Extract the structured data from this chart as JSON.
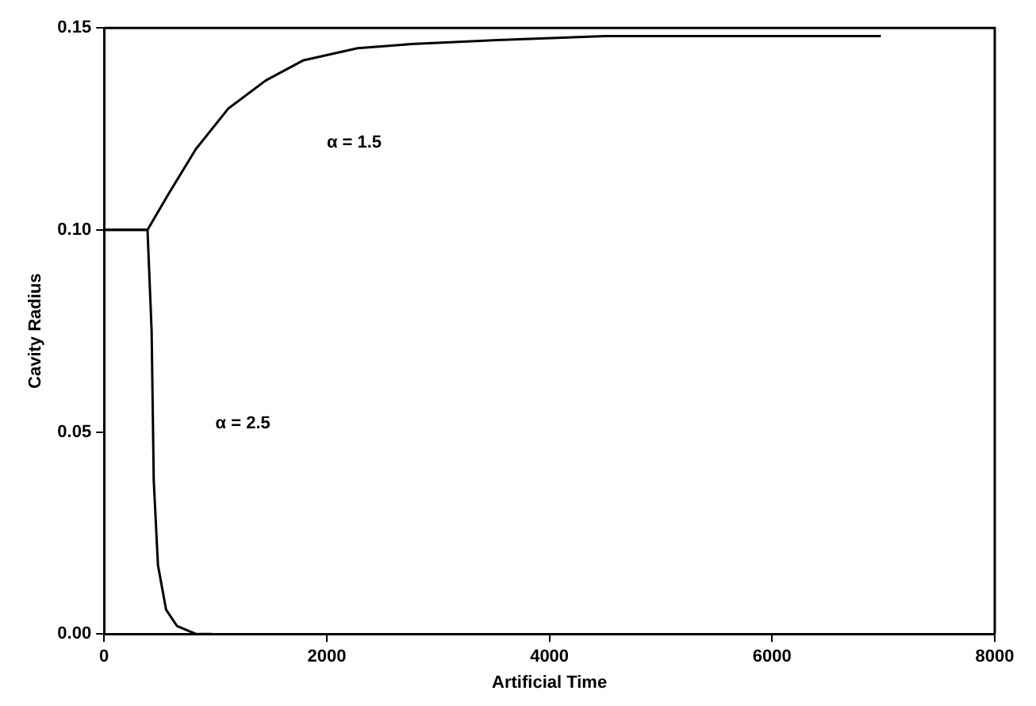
{
  "chart_data": {
    "type": "line",
    "xlabel": "Artificial Time",
    "ylabel": "Cavity Radius",
    "xlim": [
      0,
      8000
    ],
    "xticks": [
      0,
      2000,
      4000,
      6000,
      8000
    ],
    "ylim": [
      0,
      0.15
    ],
    "yticks": [
      {
        "value": 0,
        "label": "0.00"
      },
      {
        "value": 0.05,
        "label": "0.05"
      },
      {
        "value": 0.1,
        "label": "0.10"
      },
      {
        "value": 0.15,
        "label": "0.15"
      }
    ],
    "grid": false,
    "legend": false,
    "marker": "none",
    "line_style": "solid",
    "series": [
      {
        "color": "#000000",
        "x": [
          0,
          390,
          581,
          824,
          1114,
          1453,
          1792,
          2277,
          2761,
          3537,
          4500,
          6000,
          6977
        ],
        "values": [
          0.1,
          0.1,
          0.109,
          0.12,
          0.13,
          0.137,
          0.142,
          0.145,
          0.146,
          0.147,
          0.148,
          0.148,
          0.148
        ]
      },
      {
        "color": "#000000",
        "x": [
          0,
          390,
          427,
          446,
          484,
          557,
          654,
          824,
          969
        ],
        "values": [
          0.1,
          0.1,
          0.075,
          0.038,
          0.017,
          0.006,
          0.002,
          0,
          0
        ]
      }
    ],
    "annotations": [
      "α = 1.5",
      "α = 2.5"
    ]
  }
}
